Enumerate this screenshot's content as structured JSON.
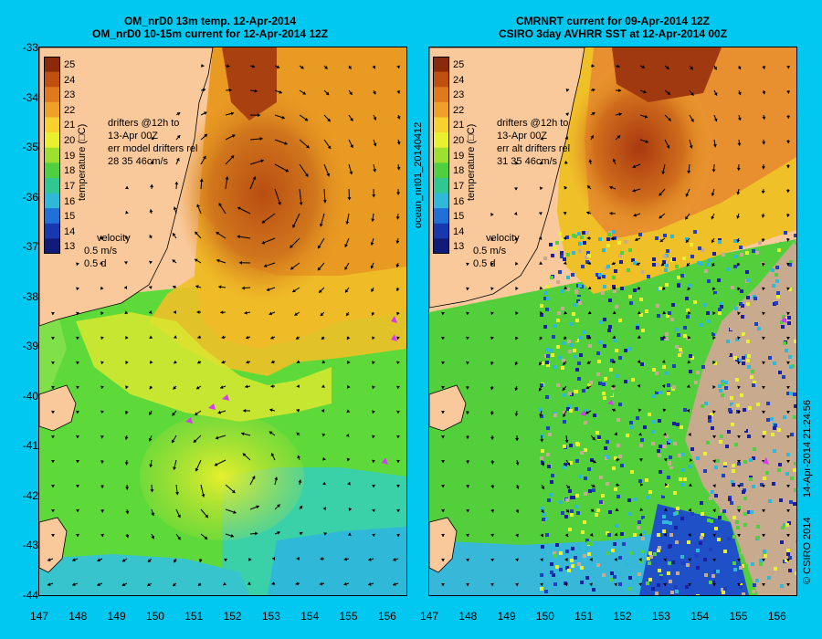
{
  "left_panel": {
    "title_line1": "OM_nrD0 13m temp. 12-Apr-2014",
    "title_line2": "OM_nrD0 10-15m current for 12-Apr-2014 12Z",
    "drifter_text": [
      "drifters @12h to",
      "13-Apr 00Z",
      "err model drifters rel",
      "28 35 46cm/s"
    ]
  },
  "right_panel": {
    "title_line1": "CMRNRT current for 09-Apr-2014 12Z",
    "title_line2": "CSIRO 3day AVHRR SST at 12-Apr-2014 00Z",
    "drifter_text": [
      "drifters @12h to",
      "13-Apr 00Z",
      "err alt drifters rel",
      "31 35 46cm/s"
    ]
  },
  "colorbar": {
    "label": "temperature (□C)",
    "ticks": [
      "25",
      "24",
      "23",
      "22",
      "21",
      "20",
      "19",
      "18",
      "17",
      "16",
      "15",
      "14",
      "13"
    ],
    "range": [
      13,
      25
    ]
  },
  "velocity_legend": [
    "velocity",
    "0.5 m/s",
    "0.5 d"
  ],
  "lat_ticks": [
    "-33",
    "-34",
    "-35",
    "-36",
    "-37",
    "-38",
    "-39",
    "-40",
    "-41",
    "-42",
    "-43",
    "-44"
  ],
  "lon_ticks": [
    "147",
    "148",
    "149",
    "150",
    "151",
    "152",
    "153",
    "154",
    "155",
    "156"
  ],
  "side_labels": {
    "product_id": "ocean_nrt01_20140412",
    "timestamp": "14-Apr-2014 21:24:56",
    "copyright": "© CSIRO 2014"
  },
  "colors": {
    "background": "#00c8f0",
    "land": "#f9c89b",
    "cloud": "#c8ab8e",
    "drifter": "#d43cf0"
  }
}
